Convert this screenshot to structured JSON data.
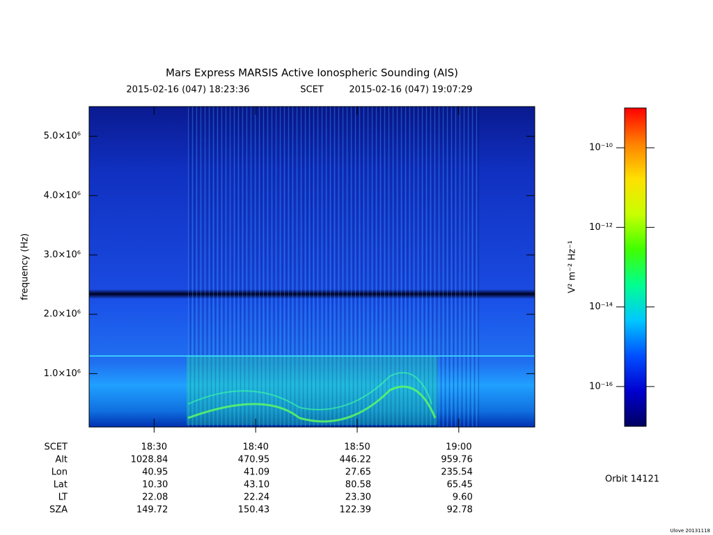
{
  "chart_data": {
    "type": "spectrogram",
    "title": "Mars Express MARSIS Active Ionospheric Sounding (AIS)",
    "subtitle": [
      "2015-02-16 (047) 18:23:36",
      "SCET",
      "2015-02-16 (047) 19:07:29"
    ],
    "ylabel": "frequency (Hz)",
    "xlim": [
      66216,
      68849
    ],
    "xticks": [
      {
        "value": 66600,
        "label": "18:30"
      },
      {
        "value": 67200,
        "label": "18:40"
      },
      {
        "value": 67800,
        "label": "18:50"
      },
      {
        "value": 68400,
        "label": "19:00"
      }
    ],
    "ylim": [
      100000,
      5500000
    ],
    "yticks": [
      {
        "value": 1000000,
        "label": "1.0×10⁶"
      },
      {
        "value": 2000000,
        "label": "2.0×10⁶"
      },
      {
        "value": 3000000,
        "label": "3.0×10⁶"
      },
      {
        "value": 4000000,
        "label": "4.0×10⁶"
      },
      {
        "value": 5000000,
        "label": "5.0×10⁶"
      }
    ],
    "colorbar": {
      "label": "V² m⁻² Hz⁻¹",
      "log": true,
      "clim": [
        1e-17,
        1e-09
      ],
      "ticks": [
        {
          "value": 1e-16,
          "label": "10⁻¹⁶"
        },
        {
          "value": 1e-14,
          "label": "10⁻¹⁴"
        },
        {
          "value": 1e-12,
          "label": "10⁻¹²"
        },
        {
          "value": 1e-10,
          "label": "10⁻¹⁰"
        }
      ],
      "colormap": [
        "#000060",
        "#0000d0",
        "#0050ff",
        "#00c8ff",
        "#00ff90",
        "#40ff00",
        "#c8ff00",
        "#ffe000",
        "#ff8000",
        "#ff0000"
      ]
    },
    "ephemeris": {
      "time_label": "SCET",
      "rows": [
        {
          "label": "Alt",
          "values": [
            "1028.84",
            "470.95",
            "446.22",
            "959.76"
          ]
        },
        {
          "label": "Lon",
          "values": [
            "40.95",
            "41.09",
            "27.65",
            "235.54"
          ]
        },
        {
          "label": "Lat",
          "values": [
            "10.30",
            "43.10",
            "80.58",
            "65.45"
          ]
        },
        {
          "label": "LT",
          "values": [
            "22.08",
            "22.24",
            "23.30",
            "9.60"
          ]
        },
        {
          "label": "SZA",
          "values": [
            "149.72",
            "150.43",
            "122.39",
            "92.78"
          ]
        }
      ]
    },
    "orbit": "Orbit 14121",
    "footer": "Ulove 20131118"
  }
}
